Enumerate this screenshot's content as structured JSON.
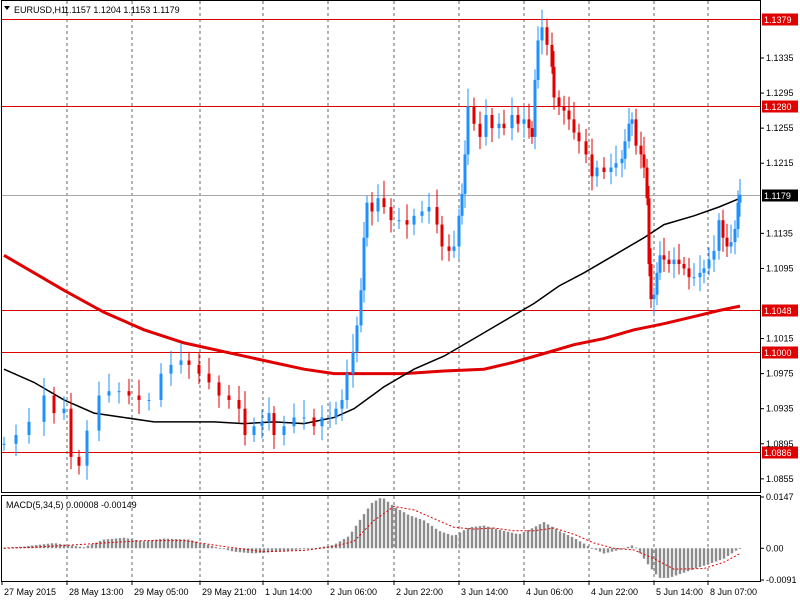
{
  "header": {
    "symbol": "EURUSD,H1",
    "ohlc": "1.1157 1.1204 1.1153 1.1179"
  },
  "macd": {
    "label": "MACD(5,34,5) 0.00008 -0.00149",
    "ticks": [
      "0.0147",
      "0.00",
      "-0.0091"
    ]
  },
  "colors": {
    "bull": "#1e90ff",
    "bear": "#e00000",
    "ma_fast": "#000000",
    "ma_slow": "#e00000",
    "level_line": "#e00000",
    "grid": "#000000"
  },
  "chart_data": {
    "type": "candlestick",
    "instrument": "EURUSD",
    "timeframe": "H1",
    "ylim": [
      1.084,
      1.14
    ],
    "y_ticks": [
      "1.1335",
      "1.1295",
      "1.1255",
      "1.1215",
      "1.1135",
      "1.1095",
      "1.1015",
      "1.0975",
      "1.0935",
      "1.0895",
      "1.0855"
    ],
    "x_ticks": [
      "27 May 2015",
      "28 May 13:00",
      "29 May 05:00",
      "29 May 21:00",
      "1 Jun 14:00",
      "2 Jun 06:00",
      "2 Jun 22:00",
      "3 Jun 14:00",
      "4 Jun 06:00",
      "4 Jun 22:00",
      "5 Jun 14:00",
      "8 Jun 07:00"
    ],
    "levels": [
      {
        "label": "1.1379",
        "value": 1.1379
      },
      {
        "label": "1.1280",
        "value": 1.128
      },
      {
        "label": "1.1048",
        "value": 1.1048
      },
      {
        "label": "1.1000",
        "value": 1.1
      },
      {
        "label": "1.0886",
        "value": 1.0886
      }
    ],
    "current_price": {
      "label": "1.1179",
      "value": 1.1179
    },
    "close_path": [
      [
        0,
        1.0895
      ],
      [
        12,
        1.0905
      ],
      [
        25,
        1.092
      ],
      [
        40,
        1.095
      ],
      [
        50,
        1.093
      ],
      [
        60,
        1.0935
      ],
      [
        67,
        1.088
      ],
      [
        75,
        1.087
      ],
      [
        83,
        1.091
      ],
      [
        95,
        1.095
      ],
      [
        105,
        1.0955
      ],
      [
        115,
        1.0955
      ],
      [
        125,
        1.095
      ],
      [
        135,
        1.0945
      ],
      [
        145,
        1.0945
      ],
      [
        157,
        1.0975
      ],
      [
        167,
        1.0985
      ],
      [
        177,
        1.099
      ],
      [
        185,
        1.0985
      ],
      [
        195,
        1.0975
      ],
      [
        205,
        1.0965
      ],
      [
        215,
        1.095
      ],
      [
        225,
        1.0945
      ],
      [
        235,
        1.0935
      ],
      [
        241,
        1.0905
      ],
      [
        250,
        1.0915
      ],
      [
        258,
        1.092
      ],
      [
        265,
        1.093
      ],
      [
        270,
        1.0905
      ],
      [
        280,
        1.0915
      ],
      [
        290,
        1.0925
      ],
      [
        300,
        1.0925
      ],
      [
        310,
        1.0915
      ],
      [
        318,
        1.0925
      ],
      [
        326,
        1.0925
      ],
      [
        332,
        1.0935
      ],
      [
        338,
        1.0945
      ],
      [
        343,
        1.0975
      ],
      [
        349,
        1.1
      ],
      [
        353,
        1.103
      ],
      [
        357,
        1.107
      ],
      [
        360,
        1.113
      ],
      [
        363,
        1.117
      ],
      [
        368,
        1.116
      ],
      [
        374,
        1.1175
      ],
      [
        380,
        1.1165
      ],
      [
        387,
        1.115
      ],
      [
        395,
        1.115
      ],
      [
        403,
        1.1145
      ],
      [
        410,
        1.1155
      ],
      [
        418,
        1.116
      ],
      [
        425,
        1.1165
      ],
      [
        433,
        1.1145
      ],
      [
        438,
        1.112
      ],
      [
        445,
        1.1115
      ],
      [
        450,
        1.112
      ],
      [
        455,
        1.1155
      ],
      [
        458,
        1.118
      ],
      [
        461,
        1.1225
      ],
      [
        464,
        1.128
      ],
      [
        470,
        1.126
      ],
      [
        476,
        1.1245
      ],
      [
        482,
        1.127
      ],
      [
        488,
        1.1255
      ],
      [
        495,
        1.126
      ],
      [
        500,
        1.1255
      ],
      [
        508,
        1.127
      ],
      [
        514,
        1.126
      ],
      [
        520,
        1.1265
      ],
      [
        525,
        1.1255
      ],
      [
        528,
        1.1245
      ],
      [
        531,
        1.131
      ],
      [
        534,
        1.1355
      ],
      [
        538,
        1.137
      ],
      [
        543,
        1.135
      ],
      [
        548,
        1.1325
      ],
      [
        550,
        1.129
      ],
      [
        555,
        1.128
      ],
      [
        560,
        1.1275
      ],
      [
        565,
        1.1265
      ],
      [
        570,
        1.125
      ],
      [
        575,
        1.124
      ],
      [
        582,
        1.1225
      ],
      [
        588,
        1.12
      ],
      [
        593,
        1.121
      ],
      [
        600,
        1.1205
      ],
      [
        607,
        1.121
      ],
      [
        612,
        1.1215
      ],
      [
        618,
        1.122
      ],
      [
        621,
        1.124
      ],
      [
        625,
        1.126
      ],
      [
        628,
        1.1265
      ],
      [
        632,
        1.1235
      ],
      [
        637,
        1.1225
      ],
      [
        640,
        1.121
      ],
      [
        643,
        1.1175
      ],
      [
        645,
        1.11
      ],
      [
        647,
        1.106
      ],
      [
        650,
        1.1065
      ],
      [
        653,
        1.109
      ],
      [
        656,
        1.111
      ],
      [
        660,
        1.1105
      ],
      [
        665,
        1.11
      ],
      [
        670,
        1.1105
      ],
      [
        675,
        1.11
      ],
      [
        680,
        1.1095
      ],
      [
        685,
        1.1085
      ],
      [
        690,
        1.1085
      ],
      [
        696,
        1.109
      ],
      [
        700,
        1.1095
      ],
      [
        705,
        1.1105
      ],
      [
        710,
        1.1115
      ],
      [
        715,
        1.115
      ],
      [
        719,
        1.113
      ],
      [
        723,
        1.112
      ],
      [
        727,
        1.1125
      ],
      [
        731,
        1.114
      ],
      [
        734,
        1.117
      ],
      [
        736,
        1.1179
      ]
    ],
    "ma_fast": [
      [
        0,
        1.098
      ],
      [
        30,
        1.0965
      ],
      [
        60,
        1.0945
      ],
      [
        90,
        1.093
      ],
      [
        120,
        1.0925
      ],
      [
        150,
        1.092
      ],
      [
        180,
        1.092
      ],
      [
        210,
        1.092
      ],
      [
        240,
        1.0918
      ],
      [
        270,
        1.092
      ],
      [
        300,
        1.0918
      ],
      [
        330,
        1.0925
      ],
      [
        350,
        1.0935
      ],
      [
        380,
        1.096
      ],
      [
        410,
        1.098
      ],
      [
        440,
        1.0995
      ],
      [
        470,
        1.1015
      ],
      [
        500,
        1.1035
      ],
      [
        530,
        1.1055
      ],
      [
        555,
        1.1075
      ],
      [
        580,
        1.109
      ],
      [
        610,
        1.111
      ],
      [
        640,
        1.113
      ],
      [
        660,
        1.1145
      ],
      [
        690,
        1.1155
      ],
      [
        715,
        1.1165
      ],
      [
        736,
        1.1175
      ]
    ],
    "ma_slow": [
      [
        0,
        1.111
      ],
      [
        30,
        1.109
      ],
      [
        60,
        1.107
      ],
      [
        100,
        1.1045
      ],
      [
        140,
        1.1025
      ],
      [
        180,
        1.101
      ],
      [
        220,
        1.1
      ],
      [
        260,
        1.099
      ],
      [
        300,
        1.098
      ],
      [
        330,
        1.0975
      ],
      [
        360,
        1.0975
      ],
      [
        400,
        1.0975
      ],
      [
        440,
        1.0978
      ],
      [
        480,
        1.098
      ],
      [
        510,
        1.0988
      ],
      [
        540,
        1.0998
      ],
      [
        570,
        1.1008
      ],
      [
        600,
        1.1015
      ],
      [
        630,
        1.1025
      ],
      [
        660,
        1.1032
      ],
      [
        690,
        1.104
      ],
      [
        715,
        1.1047
      ],
      [
        736,
        1.1052
      ]
    ],
    "macd_hist": [
      [
        0,
        0.0002
      ],
      [
        20,
        0.0005
      ],
      [
        50,
        0.0015
      ],
      [
        80,
        0.0003
      ],
      [
        100,
        0.0025
      ],
      [
        120,
        0.003
      ],
      [
        140,
        0.002
      ],
      [
        160,
        0.0028
      ],
      [
        185,
        0.0025
      ],
      [
        210,
        0.0005
      ],
      [
        230,
        -0.001
      ],
      [
        250,
        -0.0015
      ],
      [
        270,
        -0.001
      ],
      [
        290,
        -0.0005
      ],
      [
        310,
        0.0
      ],
      [
        330,
        0.001
      ],
      [
        345,
        0.0035
      ],
      [
        358,
        0.009
      ],
      [
        368,
        0.013
      ],
      [
        378,
        0.0147
      ],
      [
        390,
        0.012
      ],
      [
        405,
        0.0095
      ],
      [
        420,
        0.008
      ],
      [
        435,
        0.005
      ],
      [
        450,
        0.0035
      ],
      [
        465,
        0.006
      ],
      [
        480,
        0.0065
      ],
      [
        500,
        0.005
      ],
      [
        515,
        0.004
      ],
      [
        530,
        0.006
      ],
      [
        540,
        0.0075
      ],
      [
        555,
        0.005
      ],
      [
        570,
        0.003
      ],
      [
        585,
        0.0005
      ],
      [
        600,
        -0.0015
      ],
      [
        615,
        -0.0005
      ],
      [
        630,
        0.001
      ],
      [
        645,
        -0.005
      ],
      [
        655,
        -0.0085
      ],
      [
        665,
        -0.0085
      ],
      [
        680,
        -0.007
      ],
      [
        700,
        -0.005
      ],
      [
        720,
        -0.003
      ],
      [
        736,
        0.0001
      ]
    ],
    "macd_signal": [
      [
        0,
        0.0
      ],
      [
        30,
        0.0003
      ],
      [
        60,
        0.0008
      ],
      [
        100,
        0.0015
      ],
      [
        140,
        0.0022
      ],
      [
        180,
        0.0022
      ],
      [
        220,
        0.0005
      ],
      [
        260,
        -0.001
      ],
      [
        300,
        -0.0006
      ],
      [
        330,
        0.0005
      ],
      [
        350,
        0.002
      ],
      [
        370,
        0.008
      ],
      [
        390,
        0.012
      ],
      [
        410,
        0.011
      ],
      [
        430,
        0.0085
      ],
      [
        450,
        0.006
      ],
      [
        470,
        0.0055
      ],
      [
        490,
        0.0058
      ],
      [
        510,
        0.005
      ],
      [
        530,
        0.005
      ],
      [
        550,
        0.0058
      ],
      [
        570,
        0.004
      ],
      [
        590,
        0.0015
      ],
      [
        610,
        0.0
      ],
      [
        630,
        -0.0005
      ],
      [
        650,
        -0.003
      ],
      [
        670,
        -0.006
      ],
      [
        700,
        -0.0058
      ],
      [
        720,
        -0.004
      ],
      [
        736,
        -0.0015
      ]
    ],
    "macd_ylim": [
      -0.0091,
      0.0147
    ]
  }
}
